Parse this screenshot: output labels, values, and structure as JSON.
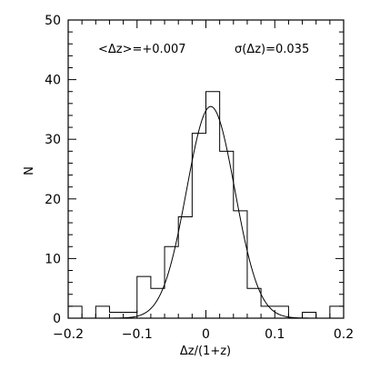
{
  "chart_data": {
    "type": "bar",
    "xlabel": "Δz/(1+z)",
    "ylabel": "N",
    "xlim": [
      -0.2,
      0.2
    ],
    "ylim": [
      0,
      50
    ],
    "x_ticks": [
      "−0.2",
      "−0.1",
      "0",
      "0.1",
      "0.2"
    ],
    "x_tick_values": [
      -0.2,
      -0.1,
      0,
      0.1,
      0.2
    ],
    "y_ticks": [
      "0",
      "10",
      "20",
      "30",
      "40",
      "50"
    ],
    "y_tick_values": [
      0,
      10,
      20,
      30,
      40,
      50
    ],
    "annotations": {
      "mean": "<Δz>=+0.007",
      "sigma": "σ(Δz)=0.035"
    },
    "histogram": {
      "bin_edges": [
        -0.2,
        -0.18,
        -0.16,
        -0.14,
        -0.12,
        -0.1,
        -0.08,
        -0.06,
        -0.04,
        -0.02,
        0.0,
        0.02,
        0.04,
        0.06,
        0.08,
        0.1,
        0.12,
        0.14,
        0.16,
        0.18,
        0.2
      ],
      "counts": [
        2,
        0,
        2,
        1,
        1,
        7,
        5,
        12,
        17,
        31,
        38,
        28,
        18,
        5,
        2,
        2,
        0,
        1,
        0,
        2
      ]
    },
    "gaussian_fit": {
      "mean": 0.007,
      "sigma": 0.035,
      "peak": 35.5
    },
    "grid": false
  }
}
